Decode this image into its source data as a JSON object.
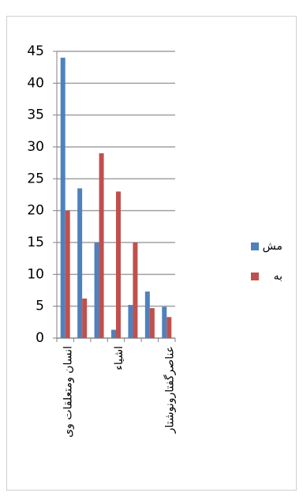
{
  "chart_data": {
    "type": "bar",
    "categories": [
      "انسان ومتعلقات وی",
      null,
      null,
      "اشیاء",
      null,
      null,
      "عناصرگفتارونوشتار"
    ],
    "series": [
      {
        "name": "مش",
        "color": "#4f81bd",
        "values": [
          44,
          23.5,
          15,
          1.3,
          5.2,
          7.3,
          4.9
        ]
      },
      {
        "name": "به",
        "color": "#c0504d",
        "values": [
          20,
          6.2,
          29,
          23,
          15,
          4.7,
          3.3
        ]
      }
    ],
    "ylim": [
      0,
      45
    ],
    "yticks": [
      0,
      5,
      10,
      15,
      20,
      25,
      30,
      35,
      40,
      45
    ],
    "grid": true,
    "legend": "right"
  }
}
